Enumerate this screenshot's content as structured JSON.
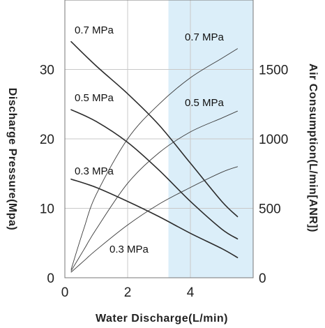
{
  "chart_data": {
    "type": "line",
    "xlabel": "Water Discharge(L/min)",
    "ylabel_left": "Discharge Pressure(Mpa)",
    "ylabel_right": "Air Consumption(L/min[ANR])",
    "xlim": [
      0,
      6
    ],
    "ylim_left": [
      0,
      40
    ],
    "ylim_right": [
      0,
      2000
    ],
    "x_ticks": [
      0,
      2,
      4
    ],
    "y_ticks_left": [
      0,
      10,
      20,
      30
    ],
    "y_ticks_right": [
      0,
      500,
      1000,
      1500
    ],
    "grid": true,
    "highlight_region_x": [
      3.3,
      6
    ],
    "highlight_color": "#dbeef9",
    "series": [
      {
        "name": "0.7 MPa",
        "axis": "left",
        "label": "0.7 MPa",
        "x": [
          0.2,
          1.0,
          2.0,
          3.0,
          4.0,
          5.0,
          5.5
        ],
        "y": [
          34.0,
          30.5,
          26.5,
          22.0,
          16.5,
          11.0,
          8.8
        ]
      },
      {
        "name": "0.5 MPa",
        "axis": "left",
        "label": "0.5 MPa",
        "x": [
          0.2,
          1.0,
          2.0,
          3.0,
          4.0,
          5.0,
          5.5
        ],
        "y": [
          24.2,
          22.5,
          19.5,
          15.5,
          11.0,
          7.0,
          5.6
        ]
      },
      {
        "name": "0.3 MPa",
        "axis": "left",
        "label": "0.3 MPa",
        "x": [
          0.2,
          1.0,
          2.0,
          3.0,
          4.0,
          5.0,
          5.5
        ],
        "y": [
          14.2,
          13.0,
          11.0,
          8.8,
          6.4,
          4.2,
          2.9
        ]
      },
      {
        "name": "0.7 MPa",
        "axis": "right",
        "label": "0.7 MPa",
        "x": [
          0.2,
          0.6,
          1.0,
          2.0,
          3.0,
          4.0,
          5.0,
          5.5
        ],
        "y": [
          60,
          350,
          600,
          1000,
          1250,
          1440,
          1580,
          1650
        ]
      },
      {
        "name": "0.5 MPa",
        "axis": "right",
        "label": "0.5 MPa",
        "x": [
          0.2,
          0.6,
          1.0,
          2.0,
          3.0,
          4.0,
          5.0,
          5.5
        ],
        "y": [
          50,
          200,
          350,
          680,
          900,
          1050,
          1150,
          1200
        ]
      },
      {
        "name": "0.3 MPa",
        "axis": "right",
        "label": "0.3 MPa",
        "x": [
          0.2,
          0.6,
          1.0,
          2.0,
          3.0,
          4.0,
          5.0,
          5.5
        ],
        "y": [
          40,
          120,
          200,
          380,
          530,
          650,
          760,
          800
        ]
      }
    ]
  }
}
